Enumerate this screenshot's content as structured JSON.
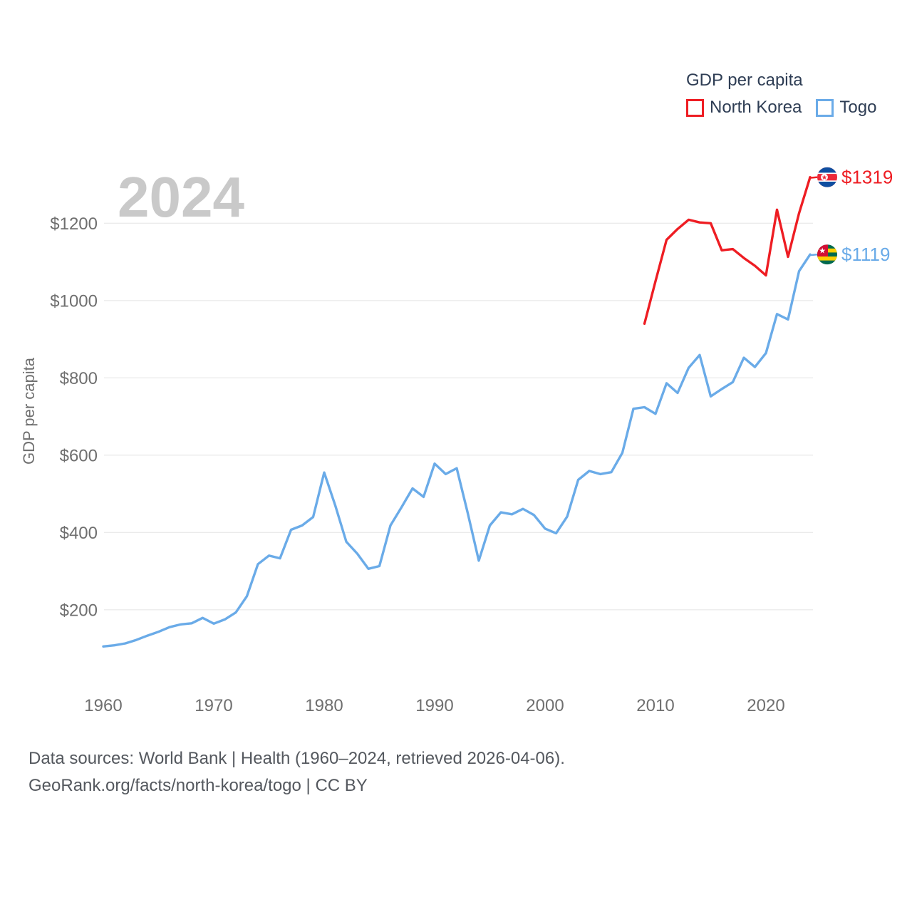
{
  "watermark_year": "2024",
  "legend": {
    "title": "GDP per capita",
    "items": [
      {
        "label": "North Korea",
        "color": "#ee1d23"
      },
      {
        "label": "Togo",
        "color": "#6aabe8"
      }
    ]
  },
  "end_labels": [
    {
      "series": "North Korea",
      "value": "$1319",
      "flag_icon": "north-korea-flag-icon",
      "color": "#ee1d23"
    },
    {
      "series": "Togo",
      "value": "$1119",
      "flag_icon": "togo-flag-icon",
      "color": "#6aabe8"
    }
  ],
  "footer": {
    "line1": "Data sources: World Bank | Health (1960–2024, retrieved 2026-04-06).",
    "line2": "GeoRank.org/facts/north-korea/togo | CC BY"
  },
  "chart_data": {
    "type": "line",
    "title": "GDP per capita",
    "ylabel": "GDP per capita",
    "grid": true,
    "legend_position": "top-right",
    "ylim": [
      0,
      1380
    ],
    "x_range_years": [
      1960,
      2024
    ],
    "x_ticks": [
      {
        "year": 1960,
        "label": "1960"
      },
      {
        "year": 1970,
        "label": "1970"
      },
      {
        "year": 1980,
        "label": "1980"
      },
      {
        "year": 1990,
        "label": "1990"
      },
      {
        "year": 2000,
        "label": "2000"
      },
      {
        "year": 2010,
        "label": "2010"
      },
      {
        "year": 2020,
        "label": "2020"
      }
    ],
    "y_ticks": [
      {
        "value": 200,
        "label": "$200"
      },
      {
        "value": 400,
        "label": "$400"
      },
      {
        "value": 600,
        "label": "$600"
      },
      {
        "value": 800,
        "label": "$800"
      },
      {
        "value": 1000,
        "label": "$1000"
      },
      {
        "value": 1200,
        "label": "$1200"
      }
    ],
    "series": [
      {
        "name": "North Korea",
        "color": "#ee1d23",
        "start_year": 2009,
        "step_years": 1,
        "values": [
          940,
          1050,
          1157,
          1185,
          1209,
          1202,
          1200,
          1130,
          1133,
          1110,
          1090,
          1065,
          1235,
          1113,
          1226,
          1319
        ]
      },
      {
        "name": "Togo",
        "color": "#6aabe8",
        "start_year": 1960,
        "step_years": 1,
        "values": [
          105,
          108,
          113,
          122,
          133,
          143,
          155,
          162,
          165,
          179,
          164,
          175,
          193,
          235,
          318,
          340,
          333,
          407,
          418,
          440,
          555,
          470,
          376,
          345,
          306,
          313,
          418,
          465,
          514,
          492,
          578,
          551,
          566,
          450,
          327,
          418,
          452,
          447,
          461,
          445,
          410,
          398,
          441,
          536,
          559,
          551,
          556,
          606,
          720,
          724,
          707,
          786,
          761,
          826,
          859,
          752,
          771,
          789,
          852,
          828,
          864,
          965,
          951,
          1076,
          1119
        ]
      }
    ]
  }
}
